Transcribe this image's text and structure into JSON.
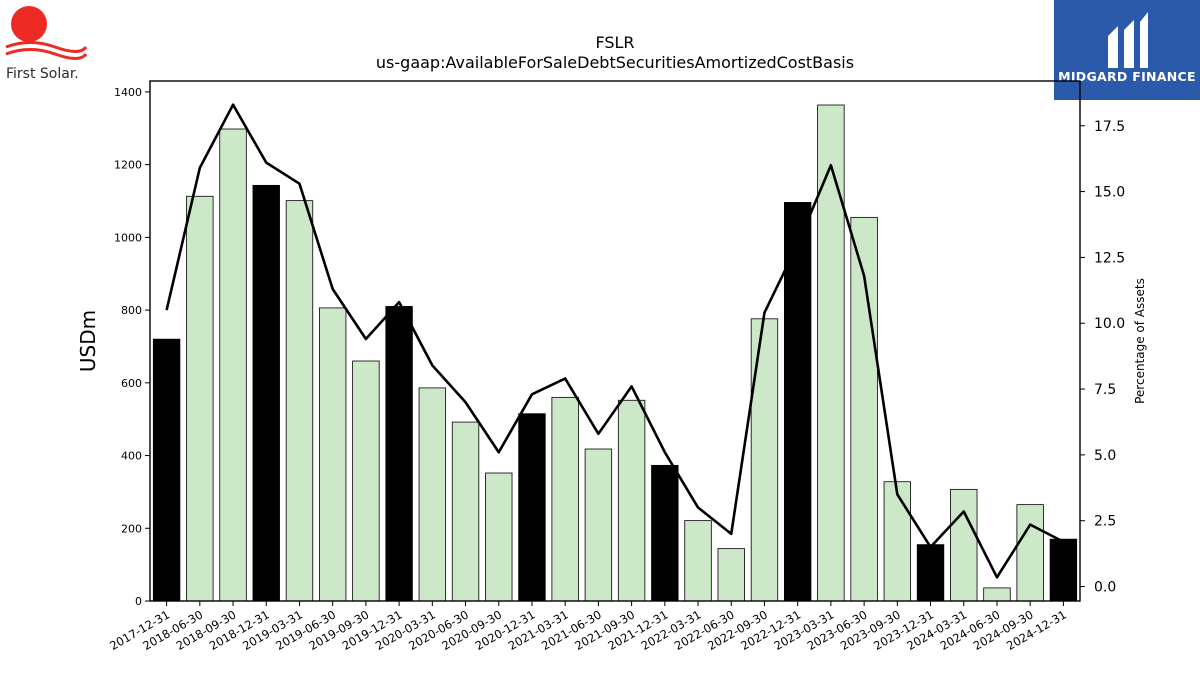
{
  "logos": {
    "left_text": "First Solar.",
    "right_text": "MIDGARD FINANCE",
    "colors": {
      "first_solar_red": "#ee2a24",
      "midgard_blue": "#2c5aab"
    }
  },
  "chart_data": {
    "type": "bar",
    "title": "FSLR",
    "subtitle": "us-gaap:AvailableForSaleDebtSecuritiesAmortizedCostBasis",
    "ylabel": "USDm",
    "y2label": "Percentage of Assets",
    "ylim": [
      0,
      1430
    ],
    "y2lim": [
      -0.55,
      19.2
    ],
    "yticks": [
      0,
      200,
      400,
      600,
      800,
      1000,
      1200,
      1400
    ],
    "y2ticks": [
      0.0,
      2.5,
      5.0,
      7.5,
      10.0,
      12.5,
      15.0,
      17.5
    ],
    "grid": false,
    "categories": [
      "2017-12-31",
      "2018-06-30",
      "2018-09-30",
      "2018-12-31",
      "2019-03-31",
      "2019-06-30",
      "2019-09-30",
      "2019-12-31",
      "2020-03-31",
      "2020-06-30",
      "2020-09-30",
      "2020-12-31",
      "2021-03-31",
      "2021-06-30",
      "2021-09-30",
      "2021-12-31",
      "2022-03-31",
      "2022-06-30",
      "2022-09-30",
      "2022-12-31",
      "2023-03-31",
      "2023-06-30",
      "2023-09-30",
      "2023-12-31",
      "2024-03-31",
      "2024-06-30",
      "2024-09-30",
      "2024-12-31"
    ],
    "series": [
      {
        "values": [
          720,
          1113,
          1298,
          1143,
          1101,
          806,
          660,
          810,
          586,
          492,
          352,
          515,
          560,
          418,
          552,
          373,
          221,
          144,
          776,
          1096,
          1364,
          1055,
          328,
          155,
          307,
          36,
          265,
          170
        ],
        "year_end_color": "#000000",
        "quarter_color": "#cde8c8",
        "axis": "left"
      },
      {
        "values": [
          10.5,
          15.9,
          18.3,
          16.1,
          15.3,
          11.3,
          9.4,
          10.8,
          8.4,
          7.0,
          5.1,
          7.3,
          7.9,
          5.8,
          7.6,
          5.1,
          3.0,
          2.0,
          10.4,
          13.0,
          16.0,
          11.8,
          3.5,
          1.5,
          2.85,
          0.35,
          2.35,
          1.7
        ],
        "color": "#000000",
        "axis": "right"
      }
    ]
  }
}
